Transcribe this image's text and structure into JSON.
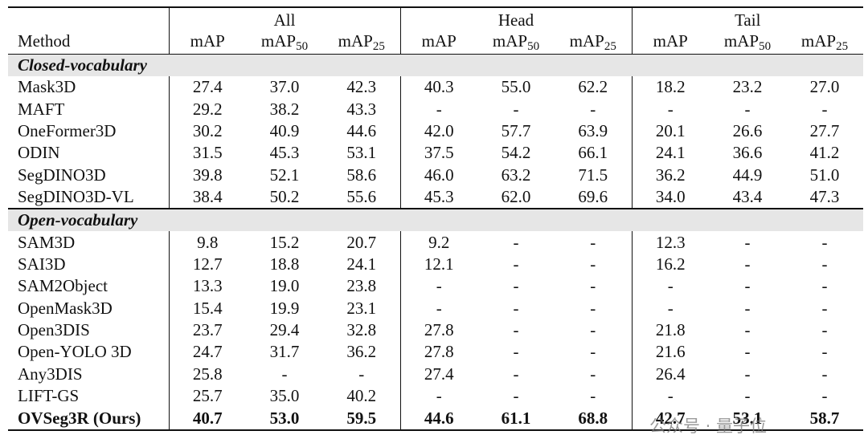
{
  "header": {
    "method": "Method",
    "groups": [
      "All",
      "Head",
      "Tail"
    ],
    "columns": [
      {
        "text": "mAP"
      },
      {
        "text": "mAP",
        "sub": "50"
      },
      {
        "text": "mAP",
        "sub": "25"
      },
      {
        "text": "mAP"
      },
      {
        "text": "mAP",
        "sub": "50"
      },
      {
        "text": "mAP",
        "sub": "25"
      },
      {
        "text": "mAP"
      },
      {
        "text": "mAP",
        "sub": "50"
      },
      {
        "text": "mAP",
        "sub": "25"
      }
    ]
  },
  "sections": [
    {
      "title": "Closed-vocabulary",
      "rows": [
        {
          "method": "Mask3D",
          "values": [
            "27.4",
            "37.0",
            "42.3",
            "40.3",
            "55.0",
            "62.2",
            "18.2",
            "23.2",
            "27.0"
          ]
        },
        {
          "method": "MAFT",
          "values": [
            "29.2",
            "38.2",
            "43.3",
            "-",
            "-",
            "-",
            "-",
            "-",
            "-"
          ]
        },
        {
          "method": "OneFormer3D",
          "values": [
            "30.2",
            "40.9",
            "44.6",
            "42.0",
            "57.7",
            "63.9",
            "20.1",
            "26.6",
            "27.7"
          ]
        },
        {
          "method": "ODIN",
          "values": [
            "31.5",
            "45.3",
            "53.1",
            "37.5",
            "54.2",
            "66.1",
            "24.1",
            "36.6",
            "41.2"
          ]
        },
        {
          "method": "SegDINO3D",
          "values": [
            "39.8",
            "52.1",
            "58.6",
            "46.0",
            "63.2",
            "71.5",
            "36.2",
            "44.9",
            "51.0"
          ]
        },
        {
          "method": "SegDINO3D-VL",
          "values": [
            "38.4",
            "50.2",
            "55.6",
            "45.3",
            "62.0",
            "69.6",
            "34.0",
            "43.4",
            "47.3"
          ]
        }
      ]
    },
    {
      "title": "Open-vocabulary",
      "rows": [
        {
          "method": "SAM3D",
          "values": [
            "9.8",
            "15.2",
            "20.7",
            "9.2",
            "-",
            "-",
            "12.3",
            "-",
            "-"
          ]
        },
        {
          "method": "SAI3D",
          "values": [
            "12.7",
            "18.8",
            "24.1",
            "12.1",
            "-",
            "-",
            "16.2",
            "-",
            "-"
          ]
        },
        {
          "method": "SAM2Object",
          "values": [
            "13.3",
            "19.0",
            "23.8",
            "-",
            "-",
            "-",
            "-",
            "-",
            "-"
          ]
        },
        {
          "method": "OpenMask3D",
          "values": [
            "15.4",
            "19.9",
            "23.1",
            "-",
            "-",
            "-",
            "-",
            "-",
            "-"
          ]
        },
        {
          "method": "Open3DIS",
          "values": [
            "23.7",
            "29.4",
            "32.8",
            "27.8",
            "-",
            "-",
            "21.8",
            "-",
            "-"
          ]
        },
        {
          "method": "Open-YOLO 3D",
          "values": [
            "24.7",
            "31.7",
            "36.2",
            "27.8",
            "-",
            "-",
            "21.6",
            "-",
            "-"
          ]
        },
        {
          "method": "Any3DIS",
          "values": [
            "25.8",
            "-",
            "-",
            "27.4",
            "-",
            "-",
            "26.4",
            "-",
            "-"
          ]
        },
        {
          "method": "LIFT-GS",
          "values": [
            "25.7",
            "35.0",
            "40.2",
            "-",
            "-",
            "-",
            "-",
            "-",
            "-"
          ]
        },
        {
          "method": "OVSeg3R (Ours)",
          "bold": true,
          "values": [
            "40.7",
            "53.0",
            "59.5",
            "44.6",
            "61.1",
            "68.8",
            "42.7",
            "53.1",
            "58.7"
          ]
        }
      ]
    }
  ],
  "watermark": "公众号 · 量子位"
}
